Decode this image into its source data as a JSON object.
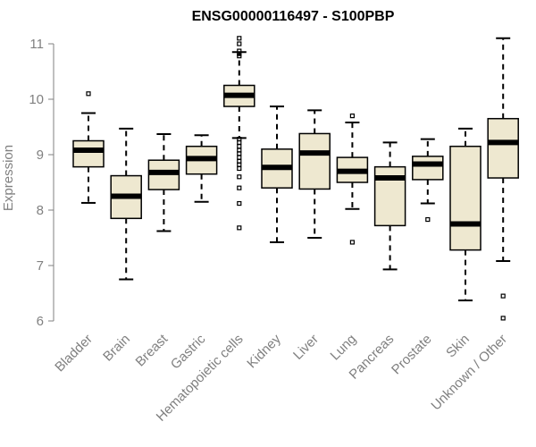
{
  "chart_data": {
    "type": "boxplot",
    "title": "ENSG00000116497 - S100PBP",
    "xlabel": "",
    "ylabel": "Expression",
    "ylim": [
      6,
      11
    ],
    "yticks": [
      6,
      7,
      8,
      9,
      10,
      11
    ],
    "box_color": "#EEE8D0",
    "categories": [
      "Bladder",
      "Brain",
      "Breast",
      "Gastric",
      "Hematopoietic cells",
      "Kidney",
      "Liver",
      "Lung",
      "Pancreas",
      "Prostate",
      "Skin",
      "Unknown / Other"
    ],
    "boxes": [
      {
        "name": "Bladder",
        "whisker_low": 8.13,
        "q1": 8.78,
        "median": 9.08,
        "q3": 9.25,
        "whisker_high": 9.75,
        "outliers": [
          10.1
        ]
      },
      {
        "name": "Brain",
        "whisker_low": 6.75,
        "q1": 7.85,
        "median": 8.25,
        "q3": 8.62,
        "whisker_high": 9.47,
        "outliers": []
      },
      {
        "name": "Breast",
        "whisker_low": 7.62,
        "q1": 8.37,
        "median": 8.68,
        "q3": 8.9,
        "whisker_high": 9.37,
        "outliers": []
      },
      {
        "name": "Gastric",
        "whisker_low": 8.15,
        "q1": 8.65,
        "median": 8.93,
        "q3": 9.15,
        "whisker_high": 9.35,
        "outliers": []
      },
      {
        "name": "Hematopoietic cells",
        "whisker_low": 9.3,
        "q1": 9.87,
        "median": 10.07,
        "q3": 10.25,
        "whisker_high": 10.85,
        "outliers": [
          11.1,
          11.0,
          10.87,
          10.82,
          10.78,
          9.28,
          9.22,
          9.15,
          9.08,
          9.02,
          8.95,
          8.88,
          8.82,
          8.75,
          8.6,
          8.4,
          8.12,
          7.68
        ]
      },
      {
        "name": "Kidney",
        "whisker_low": 7.42,
        "q1": 8.4,
        "median": 8.77,
        "q3": 9.1,
        "whisker_high": 9.87,
        "outliers": []
      },
      {
        "name": "Liver",
        "whisker_low": 7.5,
        "q1": 8.38,
        "median": 9.03,
        "q3": 9.38,
        "whisker_high": 9.8,
        "outliers": []
      },
      {
        "name": "Lung",
        "whisker_low": 8.02,
        "q1": 8.5,
        "median": 8.7,
        "q3": 8.95,
        "whisker_high": 9.58,
        "outliers": [
          9.7,
          7.42
        ]
      },
      {
        "name": "Pancreas",
        "whisker_low": 6.93,
        "q1": 7.72,
        "median": 8.58,
        "q3": 8.78,
        "whisker_high": 9.22,
        "outliers": []
      },
      {
        "name": "Prostate",
        "whisker_low": 8.12,
        "q1": 8.55,
        "median": 8.83,
        "q3": 8.97,
        "whisker_high": 9.28,
        "outliers": [
          7.83
        ]
      },
      {
        "name": "Skin",
        "whisker_low": 6.37,
        "q1": 7.28,
        "median": 7.75,
        "q3": 9.15,
        "whisker_high": 9.47,
        "outliers": []
      },
      {
        "name": "Unknown / Other",
        "whisker_low": 7.08,
        "q1": 8.58,
        "median": 9.22,
        "q3": 9.65,
        "whisker_high": 11.1,
        "outliers": [
          6.45,
          6.05
        ]
      }
    ]
  }
}
